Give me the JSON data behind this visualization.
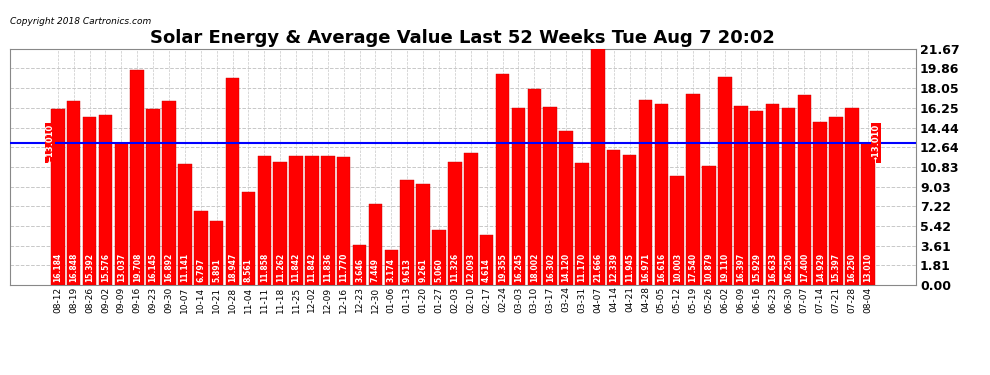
{
  "title": "Solar Energy & Average Value Last 52 Weeks Tue Aug 7 20:02",
  "copyright": "Copyright 2018 Cartronics.com",
  "average_line": 13.01,
  "average_label": "13.010",
  "ylim": [
    0,
    21.67
  ],
  "yticks": [
    0.0,
    1.81,
    3.61,
    5.42,
    7.22,
    9.03,
    10.83,
    12.64,
    14.44,
    16.25,
    18.05,
    19.86,
    21.67
  ],
  "bar_color": "#FF0000",
  "average_line_color": "#0000FF",
  "background_color": "#FFFFFF",
  "grid_color": "#C8C8C8",
  "categories": [
    "08-12",
    "08-19",
    "08-26",
    "09-02",
    "09-09",
    "09-16",
    "09-23",
    "09-30",
    "10-07",
    "10-14",
    "10-21",
    "10-28",
    "11-04",
    "11-11",
    "11-18",
    "11-25",
    "12-02",
    "12-09",
    "12-16",
    "12-23",
    "12-30",
    "01-06",
    "01-13",
    "01-20",
    "01-27",
    "02-03",
    "02-10",
    "02-17",
    "02-24",
    "03-03",
    "03-10",
    "03-17",
    "03-24",
    "03-31",
    "04-07",
    "04-14",
    "04-21",
    "04-28",
    "05-05",
    "05-12",
    "05-19",
    "05-26",
    "06-02",
    "06-09",
    "06-16",
    "06-23",
    "06-30",
    "07-07",
    "07-14",
    "07-21",
    "07-28",
    "08-04"
  ],
  "values": [
    16.184,
    16.848,
    15.392,
    15.576,
    13.037,
    19.708,
    16.145,
    16.892,
    11.141,
    6.797,
    5.891,
    18.947,
    8.561,
    11.858,
    11.262,
    11.842,
    11.842,
    11.836,
    11.77,
    3.646,
    7.449,
    3.174,
    9.613,
    9.261,
    5.06,
    11.326,
    12.093,
    4.614,
    19.355,
    16.245,
    18.002,
    16.302,
    14.12,
    11.17,
    21.666,
    12.339,
    11.945,
    16.971,
    16.616,
    10.003,
    17.54,
    10.879,
    19.11,
    16.397,
    15.929,
    16.633,
    16.25,
    17.4,
    14.929,
    15.397,
    16.25,
    13.01
  ],
  "title_fontsize": 13,
  "label_fontsize": 5.5,
  "ytick_fontsize": 9,
  "xtick_fontsize": 6.5
}
